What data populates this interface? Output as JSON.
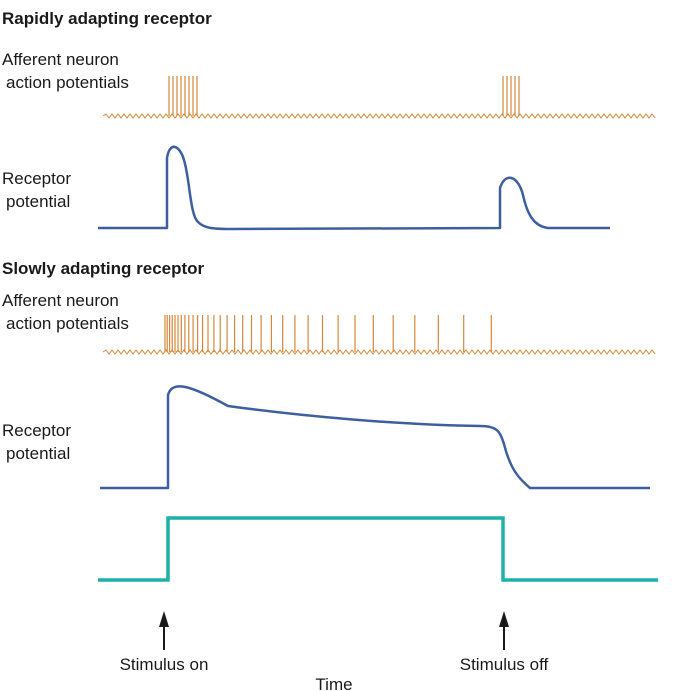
{
  "sections": {
    "rapid": {
      "title": "Rapidly adapting receptor",
      "afferent_label_1": "Afferent neuron",
      "afferent_label_2": "action potentials",
      "receptor_label_1": "Receptor",
      "receptor_label_2": "potential"
    },
    "slow": {
      "title": "Slowly adapting receptor",
      "afferent_label_1": "Afferent neuron",
      "afferent_label_2": "action potentials",
      "receptor_label_1": "Receptor",
      "receptor_label_2": "potential"
    }
  },
  "markers": {
    "on_label": "Stimulus on",
    "off_label": "Stimulus off"
  },
  "axis": {
    "time_label": "Time"
  },
  "colors": {
    "spikes": "#d4883a",
    "receptor": "#3d5fa0",
    "stimulus": "#1fb0a8",
    "text": "#1a1a1a"
  }
}
